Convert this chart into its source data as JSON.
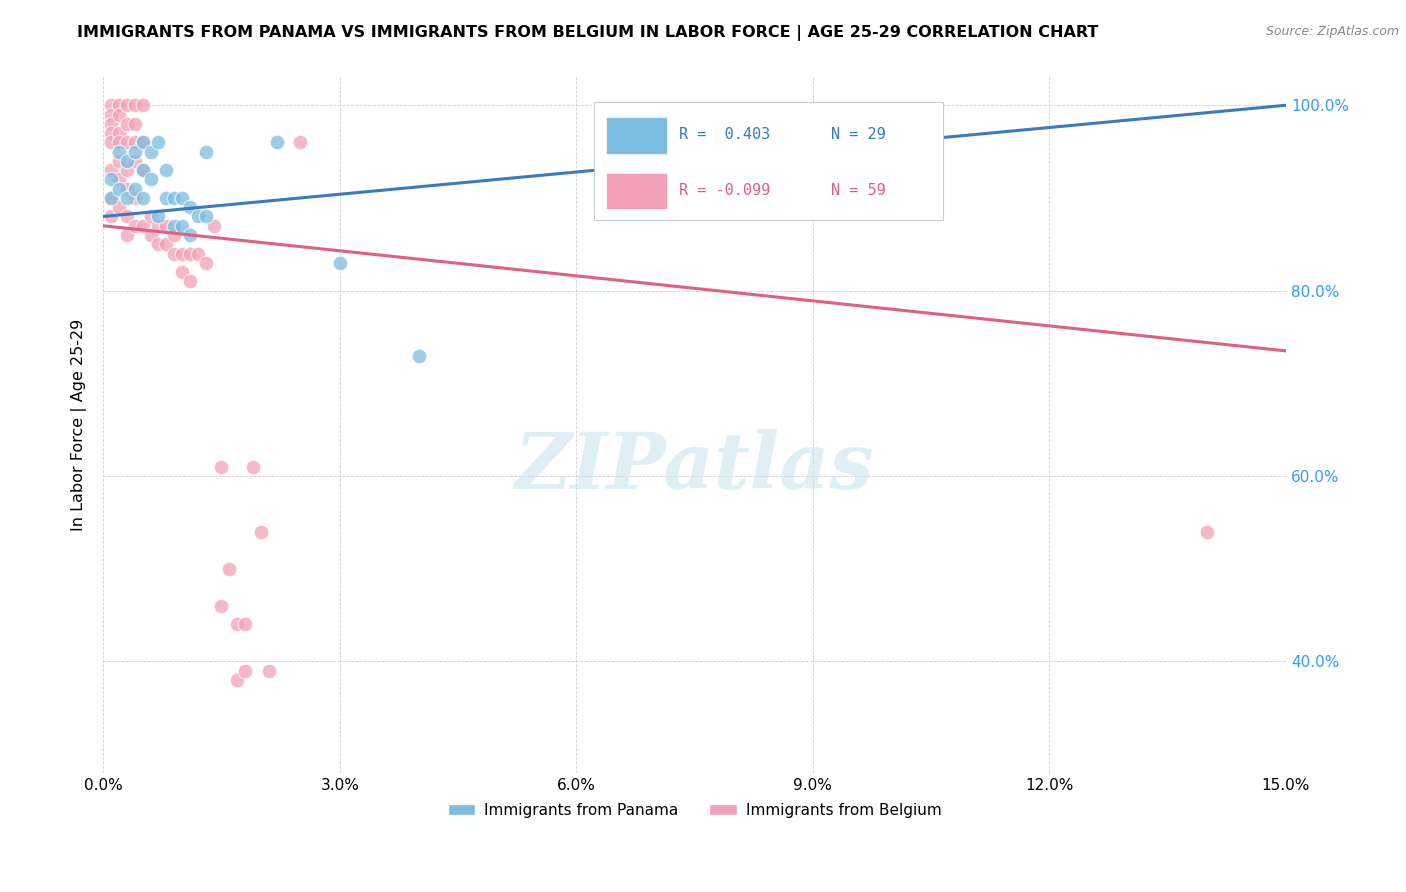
{
  "title": "IMMIGRANTS FROM PANAMA VS IMMIGRANTS FROM BELGIUM IN LABOR FORCE | AGE 25-29 CORRELATION CHART",
  "source": "Source: ZipAtlas.com",
  "ylabel": "In Labor Force | Age 25-29",
  "x_min": 0.0,
  "x_max": 0.15,
  "y_min": 0.28,
  "y_max": 1.03,
  "x_tick_labels": [
    "0.0%",
    "3.0%",
    "6.0%",
    "9.0%",
    "12.0%",
    "15.0%"
  ],
  "x_tick_vals": [
    0.0,
    0.03,
    0.06,
    0.09,
    0.12,
    0.15
  ],
  "y_tick_labels": [
    "40.0%",
    "60.0%",
    "80.0%",
    "100.0%"
  ],
  "y_tick_vals": [
    0.4,
    0.6,
    0.8,
    1.0
  ],
  "panama_color": "#7bbde0",
  "belgium_color": "#f4a0b8",
  "panama_label": "Immigrants from Panama",
  "belgium_label": "Immigrants from Belgium",
  "legend_R_panama": "R =  0.403",
  "legend_N_panama": "N = 29",
  "legend_R_belgium": "R = -0.099",
  "legend_N_belgium": "N = 59",
  "trendline_panama_color": "#3a7abf",
  "trendline_belgium_color": "#e06080",
  "trendline_panama_x0": 0.0,
  "trendline_panama_y0": 0.88,
  "trendline_panama_x1": 0.15,
  "trendline_panama_y1": 1.0,
  "trendline_belgium_x0": 0.0,
  "trendline_belgium_y0": 0.87,
  "trendline_belgium_x1": 0.15,
  "trendline_belgium_y1": 0.735,
  "watermark": "ZIPatlas",
  "panama_points": [
    [
      0.001,
      0.92
    ],
    [
      0.001,
      0.9
    ],
    [
      0.002,
      0.95
    ],
    [
      0.002,
      0.91
    ],
    [
      0.003,
      0.94
    ],
    [
      0.003,
      0.9
    ],
    [
      0.004,
      0.95
    ],
    [
      0.004,
      0.91
    ],
    [
      0.005,
      0.96
    ],
    [
      0.005,
      0.93
    ],
    [
      0.005,
      0.9
    ],
    [
      0.006,
      0.95
    ],
    [
      0.006,
      0.92
    ],
    [
      0.007,
      0.96
    ],
    [
      0.007,
      0.88
    ],
    [
      0.008,
      0.93
    ],
    [
      0.008,
      0.9
    ],
    [
      0.009,
      0.9
    ],
    [
      0.009,
      0.87
    ],
    [
      0.01,
      0.9
    ],
    [
      0.01,
      0.87
    ],
    [
      0.011,
      0.89
    ],
    [
      0.011,
      0.86
    ],
    [
      0.012,
      0.88
    ],
    [
      0.013,
      0.95
    ],
    [
      0.013,
      0.88
    ],
    [
      0.022,
      0.96
    ],
    [
      0.03,
      0.83
    ],
    [
      0.04,
      0.73
    ]
  ],
  "belgium_points": [
    [
      0.001,
      1.0
    ],
    [
      0.001,
      0.99
    ],
    [
      0.001,
      0.98
    ],
    [
      0.001,
      0.97
    ],
    [
      0.001,
      0.96
    ],
    [
      0.001,
      0.93
    ],
    [
      0.001,
      0.9
    ],
    [
      0.001,
      0.88
    ],
    [
      0.002,
      1.0
    ],
    [
      0.002,
      0.99
    ],
    [
      0.002,
      0.97
    ],
    [
      0.002,
      0.96
    ],
    [
      0.002,
      0.94
    ],
    [
      0.002,
      0.92
    ],
    [
      0.002,
      0.89
    ],
    [
      0.003,
      1.0
    ],
    [
      0.003,
      0.98
    ],
    [
      0.003,
      0.96
    ],
    [
      0.003,
      0.93
    ],
    [
      0.003,
      0.91
    ],
    [
      0.003,
      0.88
    ],
    [
      0.003,
      0.86
    ],
    [
      0.004,
      1.0
    ],
    [
      0.004,
      0.98
    ],
    [
      0.004,
      0.96
    ],
    [
      0.004,
      0.94
    ],
    [
      0.004,
      0.9
    ],
    [
      0.004,
      0.87
    ],
    [
      0.005,
      1.0
    ],
    [
      0.005,
      0.96
    ],
    [
      0.005,
      0.93
    ],
    [
      0.005,
      0.87
    ],
    [
      0.006,
      0.88
    ],
    [
      0.006,
      0.86
    ],
    [
      0.007,
      0.87
    ],
    [
      0.007,
      0.85
    ],
    [
      0.008,
      0.87
    ],
    [
      0.008,
      0.85
    ],
    [
      0.009,
      0.86
    ],
    [
      0.009,
      0.84
    ],
    [
      0.01,
      0.84
    ],
    [
      0.01,
      0.82
    ],
    [
      0.011,
      0.84
    ],
    [
      0.011,
      0.81
    ],
    [
      0.012,
      0.84
    ],
    [
      0.013,
      0.83
    ],
    [
      0.014,
      0.87
    ],
    [
      0.015,
      0.61
    ],
    [
      0.015,
      0.46
    ],
    [
      0.016,
      0.5
    ],
    [
      0.017,
      0.44
    ],
    [
      0.017,
      0.38
    ],
    [
      0.018,
      0.44
    ],
    [
      0.018,
      0.39
    ],
    [
      0.019,
      0.61
    ],
    [
      0.02,
      0.54
    ],
    [
      0.021,
      0.39
    ],
    [
      0.025,
      0.96
    ],
    [
      0.14,
      0.54
    ]
  ]
}
